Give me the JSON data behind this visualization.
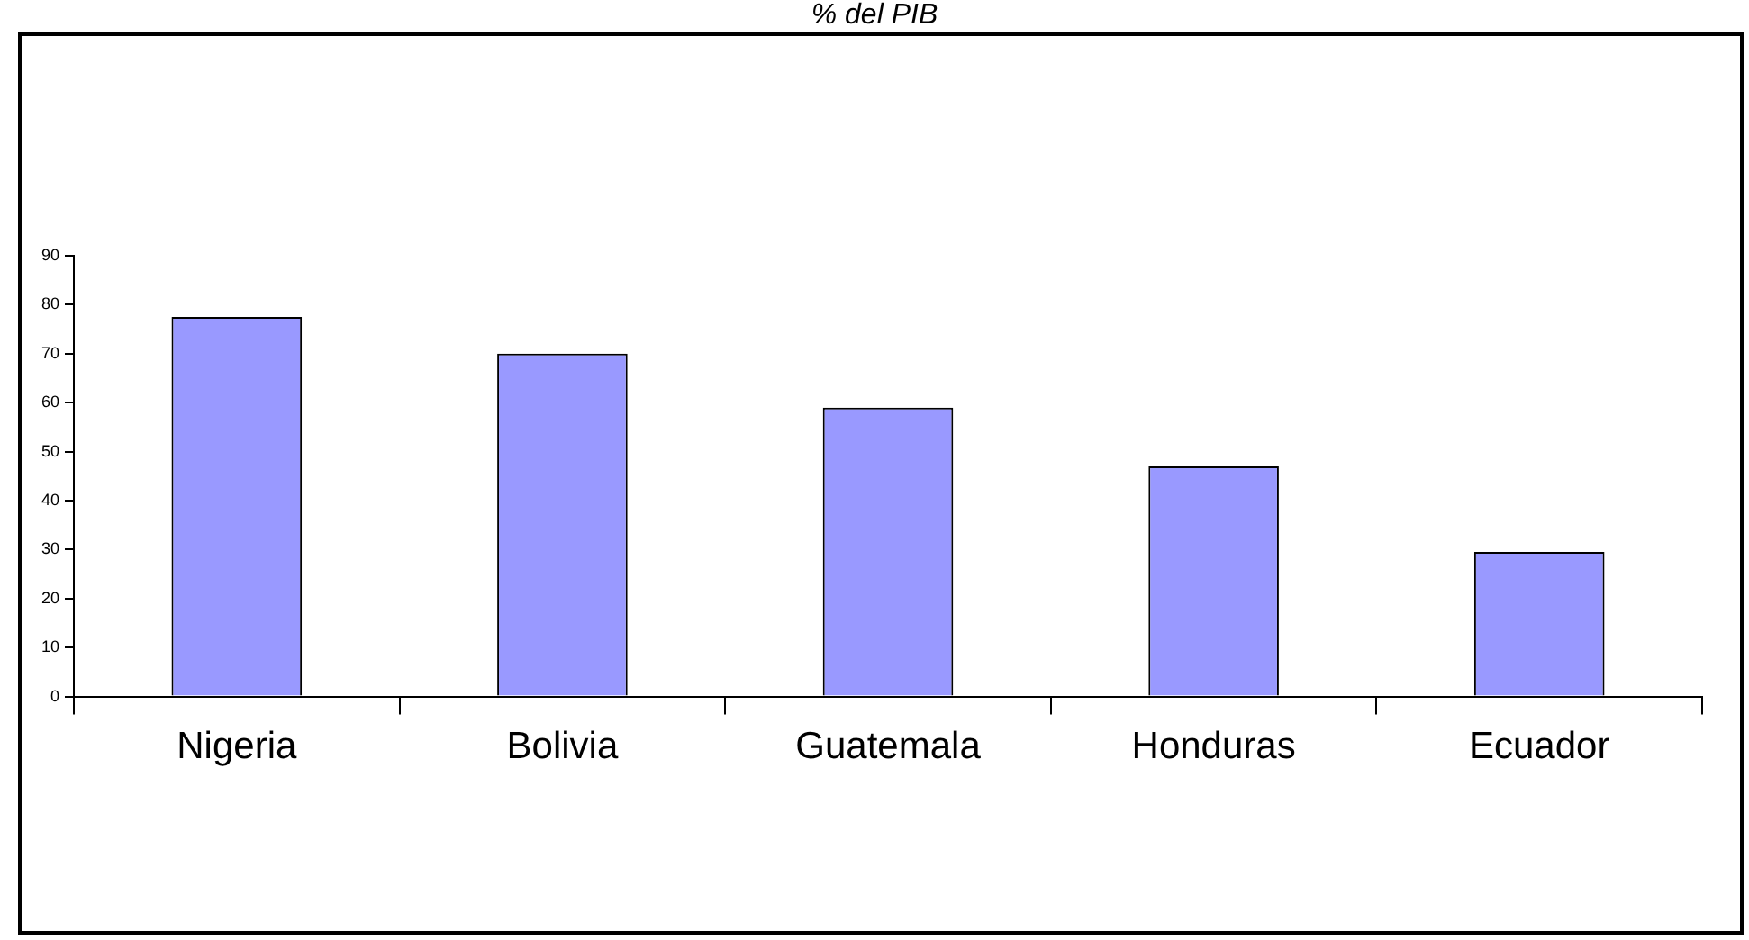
{
  "chart_data": {
    "type": "bar",
    "title": "% del PIB",
    "categories": [
      "Nigeria",
      "Bolivia",
      "Guatemala",
      "Honduras",
      "Ecuador"
    ],
    "values": [
      77.5,
      70,
      59,
      47,
      29.5
    ],
    "color": "#9999ff",
    "ylim": [
      0,
      90
    ],
    "yticks": [
      0,
      10,
      20,
      30,
      40,
      50,
      60,
      70,
      80,
      90
    ],
    "grid": false,
    "legend": false
  }
}
